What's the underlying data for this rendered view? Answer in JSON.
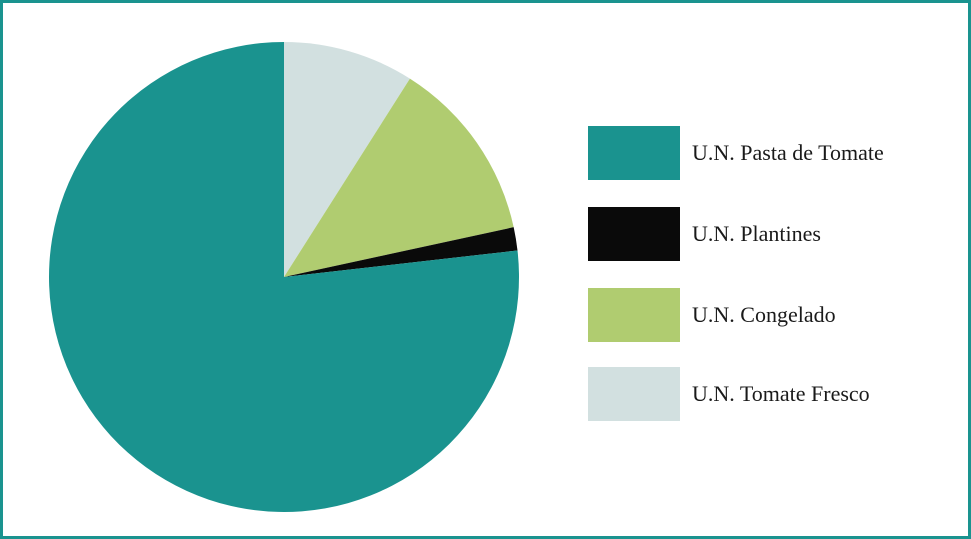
{
  "chart_data": {
    "type": "pie",
    "title": "",
    "start_angle_deg": 0,
    "direction": "clockwise",
    "slices": [
      {
        "label": "U.N. Tomate Fresco",
        "value": 9.0,
        "color": "#d2e0e0"
      },
      {
        "label": "U.N. Congelado",
        "value": 12.6,
        "color": "#b0cc70"
      },
      {
        "label": "U.N. Plantines",
        "value": 1.6,
        "color": "#0a0a0a"
      },
      {
        "label": "U.N. Pasta de Tomate",
        "value": 76.8,
        "color": "#1a938f"
      }
    ],
    "legend": {
      "placement": "right",
      "entries": [
        {
          "label": "U.N. Pasta de Tomate",
          "color": "#1a938f"
        },
        {
          "label": "U.N. Plantines",
          "color": "#0a0a0a"
        },
        {
          "label": "U.N. Congelado",
          "color": "#b0cc70"
        },
        {
          "label": "U.N. Tomate Fresco",
          "color": "#d2e0e0"
        }
      ]
    }
  }
}
